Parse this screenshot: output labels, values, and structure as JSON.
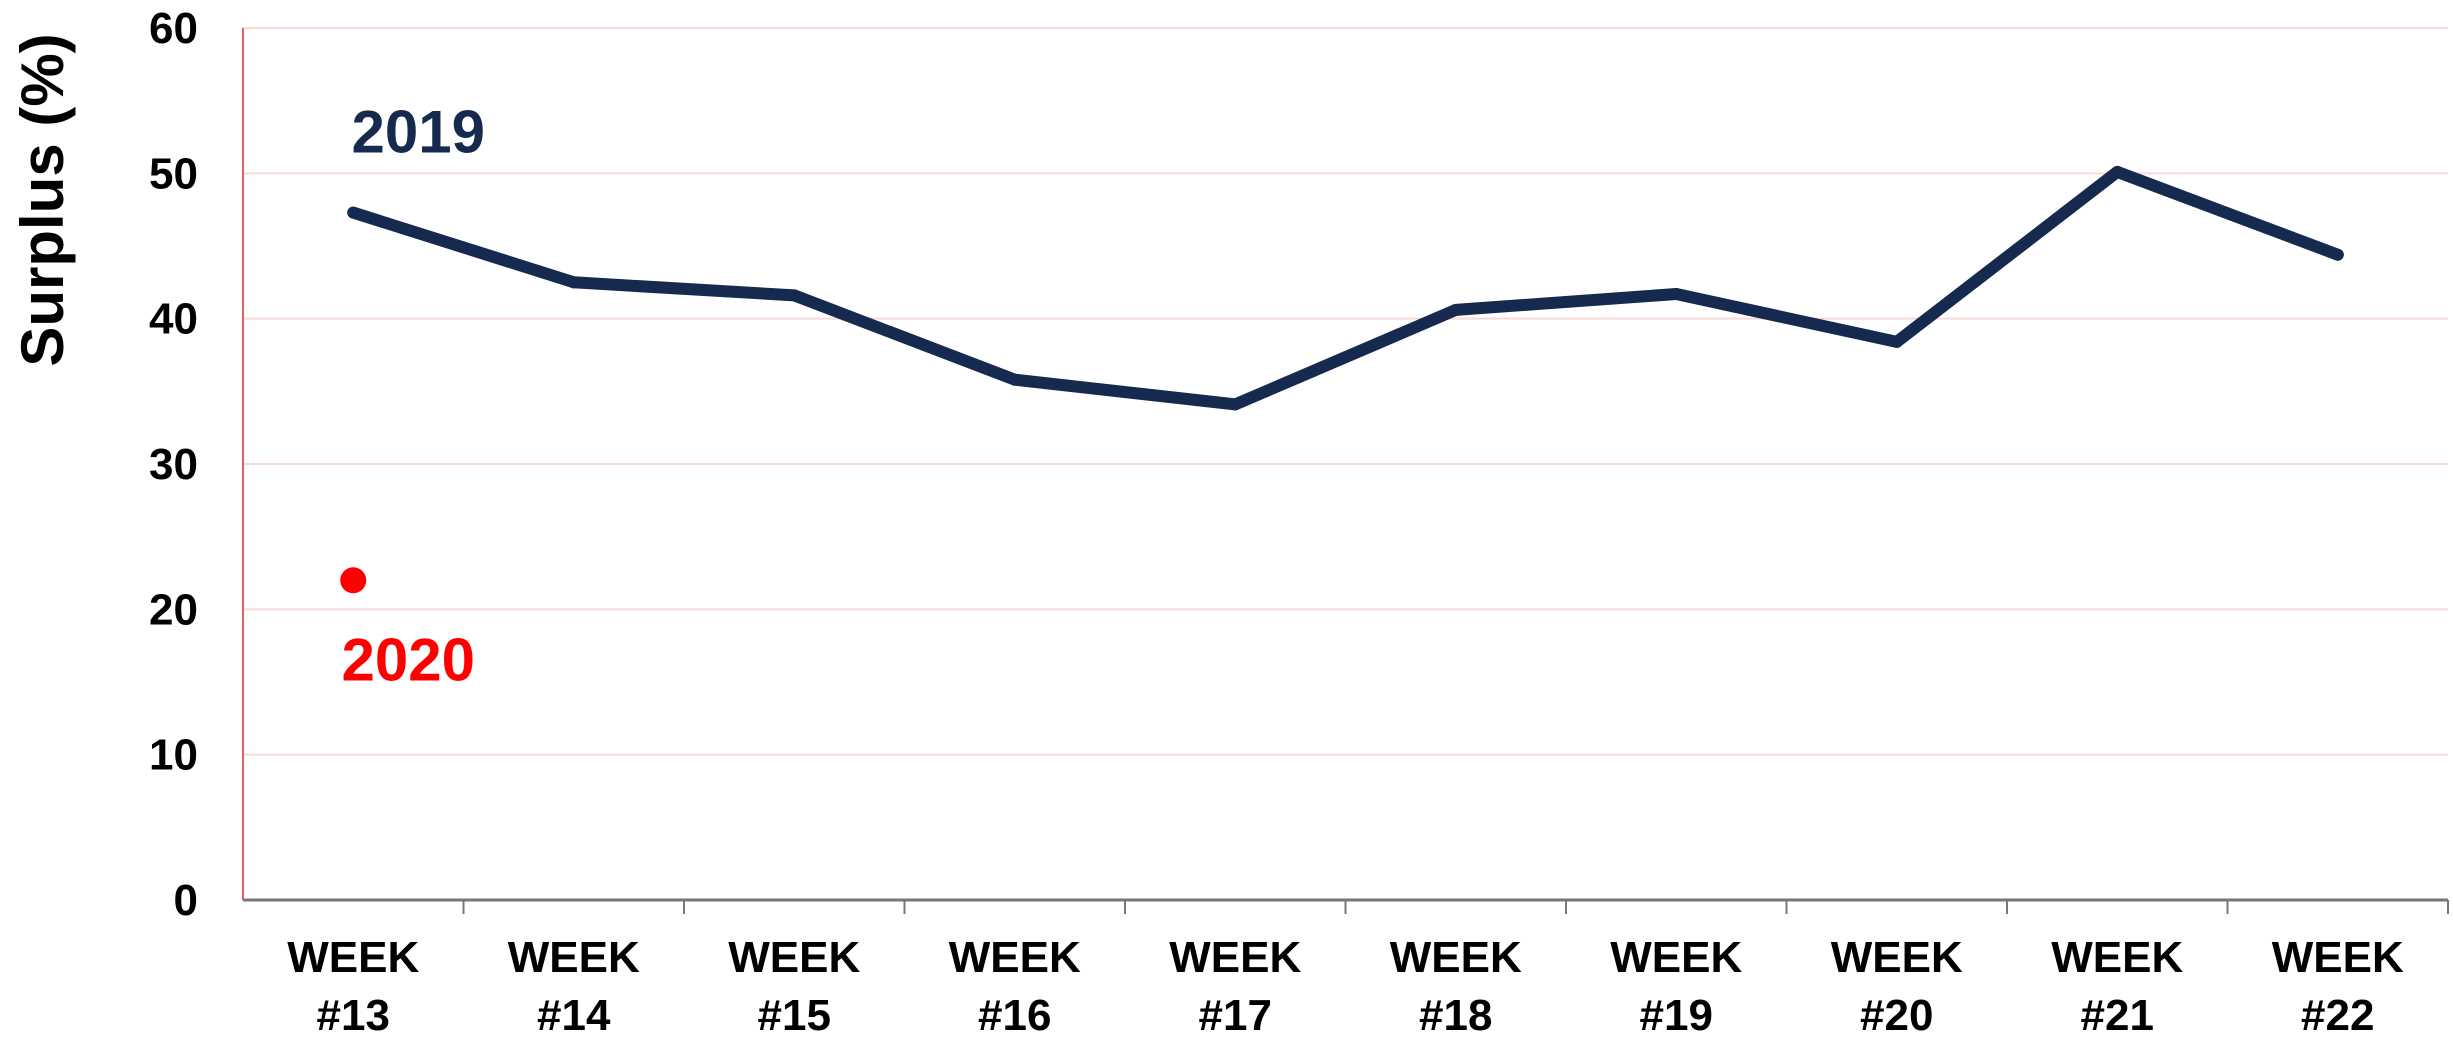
{
  "chart_data": {
    "type": "line",
    "title": "",
    "xlabel": "",
    "ylabel": "Surplus (%)",
    "ylim": [
      0,
      60
    ],
    "yticks": [
      0,
      10,
      20,
      30,
      40,
      50,
      60
    ],
    "grid": true,
    "legend": "none",
    "categories": [
      [
        "WEEK",
        "#13"
      ],
      [
        "WEEK",
        "#14"
      ],
      [
        "WEEK",
        "#15"
      ],
      [
        "WEEK",
        "#16"
      ],
      [
        "WEEK",
        "#17"
      ],
      [
        "WEEK",
        "#18"
      ],
      [
        "WEEK",
        "#19"
      ],
      [
        "WEEK",
        "#20"
      ],
      [
        "WEEK",
        "#21"
      ],
      [
        "WEEK",
        "#22"
      ]
    ],
    "series": [
      {
        "name": "2019",
        "color": "#152a4e",
        "values": [
          47.3,
          42.5,
          41.6,
          35.8,
          34.1,
          40.6,
          41.7,
          38.4,
          50.1,
          44.4
        ]
      },
      {
        "name": "2020",
        "color": "#ff0000",
        "values": [
          22.0,
          null,
          null,
          null,
          null,
          null,
          null,
          null,
          null,
          null
        ]
      }
    ],
    "colors": {
      "grid": "#f7d9d9",
      "axis_left": "#e06060",
      "axis_bottom": "#777777"
    }
  }
}
